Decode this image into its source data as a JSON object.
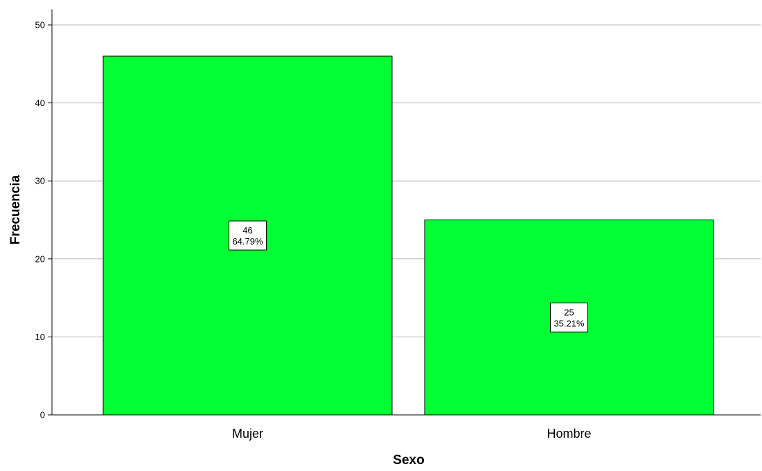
{
  "chart_data": {
    "type": "bar",
    "title": "",
    "xlabel": "Sexo",
    "ylabel": "Frecuencia",
    "categories": [
      "Mujer",
      "Hombre"
    ],
    "values": [
      46,
      25
    ],
    "data_labels": [
      {
        "count": "46",
        "percent": "64.79%"
      },
      {
        "count": "25",
        "percent": "35.21%"
      }
    ],
    "ylim": [
      0,
      52
    ],
    "yticks": [
      0,
      10,
      20,
      30,
      40,
      50
    ],
    "grid": "horizontal",
    "colors": {
      "bar_fill": "#00ff33",
      "bar_stroke": "#000000",
      "grid": "#b4b4b4",
      "axis": "#000000"
    }
  }
}
